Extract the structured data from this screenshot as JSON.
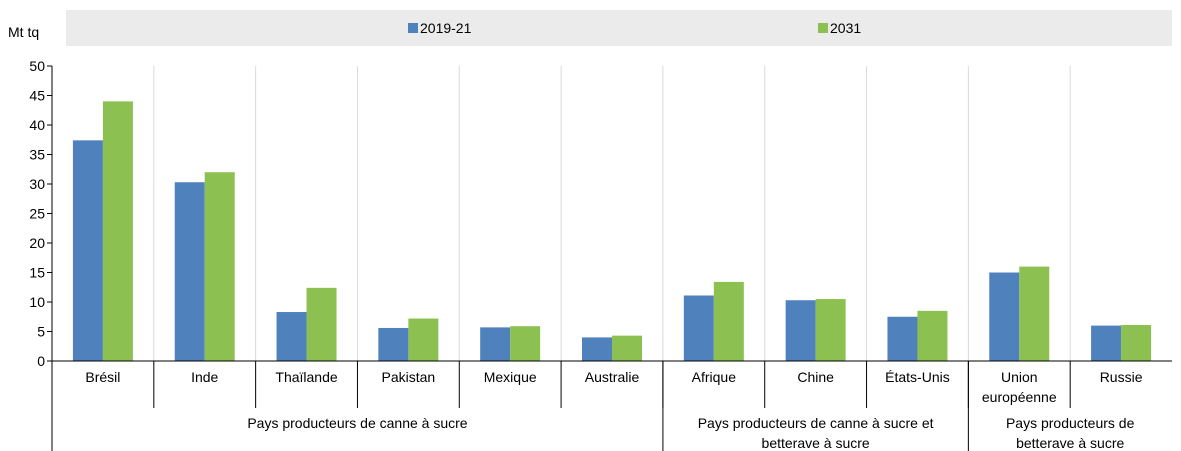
{
  "chart_data": {
    "type": "bar",
    "ylabel": "Mt tq",
    "ylim": [
      0,
      50
    ],
    "yticks": [
      0,
      5,
      10,
      15,
      20,
      25,
      30,
      35,
      40,
      45,
      50
    ],
    "grid": true,
    "legend_position": "top",
    "categories": [
      "Brésil",
      "Inde",
      "Thaïlande",
      "Pakistan",
      "Mexique",
      "Australie",
      "Afrique",
      "Chine",
      "États-Unis",
      "Union européenne",
      "Russie"
    ],
    "series": [
      {
        "name": "2019-21",
        "color": "#4f81bd",
        "values": [
          37.4,
          30.3,
          8.3,
          5.6,
          5.7,
          4.0,
          11.1,
          10.3,
          7.5,
          15.0,
          6.0
        ]
      },
      {
        "name": "2031",
        "color": "#8cc152",
        "values": [
          44.0,
          32.0,
          12.4,
          7.2,
          5.9,
          4.3,
          13.4,
          10.5,
          8.5,
          16.0,
          6.1
        ]
      }
    ],
    "groups": [
      {
        "label": "Pays producteurs de canne à sucre",
        "start": 0,
        "end": 5
      },
      {
        "label": "Pays producteurs de canne à sucre et betterave à sucre",
        "start": 6,
        "end": 8
      },
      {
        "label": "Pays producteurs de betterave à sucre",
        "start": 9,
        "end": 10
      }
    ]
  },
  "colors": {
    "legend_band": "#ebebeb",
    "grid": "#d9d9d9"
  }
}
